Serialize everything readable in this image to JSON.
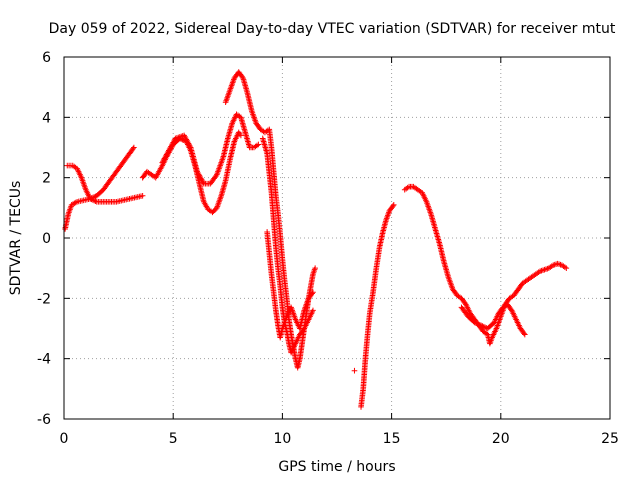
{
  "chart_data": {
    "type": "scatter",
    "title": "Day 059 of 2022, Sidereal Day-to-day VTEC variation (SDTVAR) for receiver mtut",
    "xlabel": "GPS time / hours",
    "ylabel": "SDTVAR / TECUs",
    "xlim": [
      0,
      25
    ],
    "ylim": [
      -6,
      6
    ],
    "xticks": [
      0,
      5,
      10,
      15,
      20,
      25
    ],
    "yticks": [
      -6,
      -4,
      -2,
      0,
      2,
      4,
      6
    ],
    "grid": true,
    "marker": "+",
    "color": "#ff0000",
    "series": [
      {
        "name": "SDTVAR",
        "segments": [
          [
            [
              0.05,
              0.3
            ],
            [
              0.2,
              0.8
            ],
            [
              0.35,
              1.1
            ],
            [
              0.6,
              1.2
            ],
            [
              0.9,
              1.25
            ],
            [
              1.2,
              1.3
            ],
            [
              1.5,
              1.4
            ],
            [
              1.8,
              1.6
            ],
            [
              2.1,
              1.9
            ],
            [
              2.4,
              2.2
            ],
            [
              2.7,
              2.5
            ],
            [
              3.0,
              2.8
            ],
            [
              3.2,
              3.0
            ]
          ],
          [
            [
              0.15,
              2.4
            ],
            [
              0.4,
              2.4
            ],
            [
              0.6,
              2.3
            ],
            [
              0.8,
              2.0
            ],
            [
              1.0,
              1.6
            ],
            [
              1.2,
              1.3
            ],
            [
              1.5,
              1.2
            ],
            [
              1.8,
              1.2
            ],
            [
              2.1,
              1.2
            ],
            [
              2.4,
              1.2
            ],
            [
              2.7,
              1.25
            ],
            [
              3.0,
              1.3
            ],
            [
              3.3,
              1.35
            ],
            [
              3.6,
              1.4
            ]
          ],
          [
            [
              3.6,
              2.0
            ],
            [
              3.8,
              2.2
            ],
            [
              4.0,
              2.1
            ],
            [
              4.2,
              2.0
            ],
            [
              4.35,
              2.2
            ],
            [
              4.5,
              2.4
            ],
            [
              4.7,
              2.7
            ],
            [
              5.0,
              3.1
            ],
            [
              5.3,
              3.3
            ],
            [
              5.6,
              3.2
            ],
            [
              5.8,
              2.9
            ],
            [
              6.0,
              2.4
            ],
            [
              6.2,
              1.8
            ],
            [
              6.4,
              1.2
            ],
            [
              6.6,
              0.95
            ],
            [
              6.8,
              0.85
            ],
            [
              7.0,
              1.0
            ],
            [
              7.2,
              1.4
            ],
            [
              7.4,
              1.9
            ],
            [
              7.6,
              2.6
            ],
            [
              7.8,
              3.2
            ],
            [
              8.0,
              3.5
            ],
            [
              8.1,
              3.4
            ]
          ],
          [
            [
              4.5,
              2.5
            ],
            [
              4.8,
              2.9
            ],
            [
              5.1,
              3.3
            ],
            [
              5.5,
              3.4
            ],
            [
              5.8,
              3.0
            ],
            [
              6.1,
              2.2
            ],
            [
              6.4,
              1.8
            ],
            [
              6.7,
              1.8
            ],
            [
              7.0,
              2.1
            ],
            [
              7.3,
              2.7
            ],
            [
              7.5,
              3.3
            ],
            [
              7.7,
              3.8
            ],
            [
              7.9,
              4.1
            ],
            [
              8.1,
              4.0
            ],
            [
              8.3,
              3.5
            ],
            [
              8.5,
              3.0
            ],
            [
              8.7,
              3.0
            ],
            [
              8.9,
              3.1
            ]
          ],
          [
            [
              7.4,
              4.5
            ],
            [
              7.6,
              4.9
            ],
            [
              7.8,
              5.3
            ],
            [
              8.0,
              5.5
            ],
            [
              8.2,
              5.3
            ],
            [
              8.4,
              4.8
            ],
            [
              8.6,
              4.2
            ],
            [
              8.8,
              3.8
            ],
            [
              9.0,
              3.6
            ],
            [
              9.2,
              3.5
            ],
            [
              9.4,
              3.6
            ],
            [
              9.5,
              3.0
            ],
            [
              9.6,
              2.2
            ],
            [
              9.7,
              1.4
            ],
            [
              9.8,
              0.8
            ],
            [
              9.9,
              0.1
            ],
            [
              10.0,
              -0.7
            ],
            [
              10.1,
              -1.4
            ],
            [
              10.2,
              -2.0
            ],
            [
              10.3,
              -2.7
            ],
            [
              10.4,
              -3.2
            ],
            [
              10.5,
              -3.6
            ],
            [
              10.6,
              -4.0
            ],
            [
              10.7,
              -4.3
            ],
            [
              10.8,
              -4.0
            ],
            [
              10.9,
              -3.5
            ],
            [
              11.0,
              -3.0
            ],
            [
              11.1,
              -2.5
            ],
            [
              11.2,
              -2.0
            ],
            [
              11.3,
              -1.6
            ],
            [
              11.4,
              -1.2
            ],
            [
              11.5,
              -1.0
            ]
          ],
          [
            [
              9.1,
              3.3
            ],
            [
              9.3,
              2.8
            ],
            [
              9.5,
              1.5
            ],
            [
              9.6,
              0.6
            ],
            [
              9.7,
              -0.3
            ],
            [
              9.8,
              -1.0
            ],
            [
              9.9,
              -1.6
            ],
            [
              10.0,
              -2.3
            ],
            [
              10.1,
              -2.8
            ],
            [
              10.2,
              -3.1
            ],
            [
              10.3,
              -3.5
            ],
            [
              10.4,
              -3.8
            ],
            [
              10.6,
              -3.5
            ],
            [
              10.8,
              -3.2
            ],
            [
              11.0,
              -3.0
            ],
            [
              11.2,
              -2.7
            ],
            [
              11.4,
              -2.4
            ]
          ],
          [
            [
              9.3,
              0.2
            ],
            [
              9.4,
              -0.5
            ],
            [
              9.5,
              -1.2
            ],
            [
              9.6,
              -1.8
            ],
            [
              9.7,
              -2.4
            ],
            [
              9.8,
              -2.9
            ],
            [
              9.9,
              -3.3
            ],
            [
              10.0,
              -3.0
            ],
            [
              10.2,
              -2.6
            ],
            [
              10.4,
              -2.3
            ],
            [
              10.6,
              -2.7
            ],
            [
              10.8,
              -3.0
            ],
            [
              11.0,
              -2.4
            ],
            [
              11.2,
              -2.0
            ],
            [
              11.4,
              -1.8
            ]
          ],
          [
            [
              13.3,
              -4.4
            ]
          ],
          [
            [
              13.6,
              -5.6
            ],
            [
              13.7,
              -5.0
            ],
            [
              13.8,
              -4.0
            ],
            [
              13.9,
              -3.2
            ],
            [
              14.0,
              -2.5
            ],
            [
              14.15,
              -1.8
            ],
            [
              14.3,
              -1.0
            ],
            [
              14.45,
              -0.3
            ],
            [
              14.6,
              0.2
            ],
            [
              14.75,
              0.6
            ],
            [
              14.9,
              0.9
            ],
            [
              15.1,
              1.1
            ]
          ],
          [
            [
              15.6,
              1.6
            ],
            [
              15.8,
              1.7
            ],
            [
              16.0,
              1.7
            ],
            [
              16.2,
              1.6
            ],
            [
              16.4,
              1.5
            ],
            [
              16.6,
              1.2
            ],
            [
              16.8,
              0.8
            ],
            [
              17.0,
              0.3
            ],
            [
              17.2,
              -0.2
            ],
            [
              17.4,
              -0.8
            ],
            [
              17.6,
              -1.3
            ],
            [
              17.8,
              -1.7
            ],
            [
              18.0,
              -1.9
            ],
            [
              18.2,
              -2.0
            ],
            [
              18.4,
              -2.2
            ],
            [
              18.6,
              -2.5
            ],
            [
              18.8,
              -2.7
            ],
            [
              19.0,
              -2.9
            ],
            [
              19.2,
              -3.1
            ],
            [
              19.4,
              -3.2
            ],
            [
              19.5,
              -3.5
            ],
            [
              19.6,
              -3.3
            ],
            [
              19.8,
              -3.0
            ],
            [
              20.0,
              -2.6
            ],
            [
              20.2,
              -2.2
            ],
            [
              20.4,
              -2.0
            ],
            [
              20.6,
              -1.9
            ],
            [
              20.8,
              -1.7
            ],
            [
              21.0,
              -1.5
            ],
            [
              21.2,
              -1.4
            ],
            [
              21.4,
              -1.3
            ],
            [
              21.6,
              -1.2
            ],
            [
              21.8,
              -1.1
            ],
            [
              22.0,
              -1.05
            ],
            [
              22.2,
              -1.0
            ],
            [
              22.4,
              -0.9
            ],
            [
              22.6,
              -0.85
            ],
            [
              22.8,
              -0.9
            ],
            [
              23.0,
              -1.0
            ]
          ],
          [
            [
              18.2,
              -2.3
            ],
            [
              18.5,
              -2.6
            ],
            [
              18.8,
              -2.8
            ],
            [
              19.1,
              -2.9
            ],
            [
              19.4,
              -3.0
            ],
            [
              19.7,
              -2.8
            ],
            [
              19.9,
              -2.5
            ],
            [
              20.1,
              -2.3
            ],
            [
              20.3,
              -2.2
            ],
            [
              20.5,
              -2.4
            ],
            [
              20.7,
              -2.7
            ],
            [
              20.9,
              -3.0
            ],
            [
              21.1,
              -3.2
            ]
          ]
        ]
      }
    ]
  }
}
